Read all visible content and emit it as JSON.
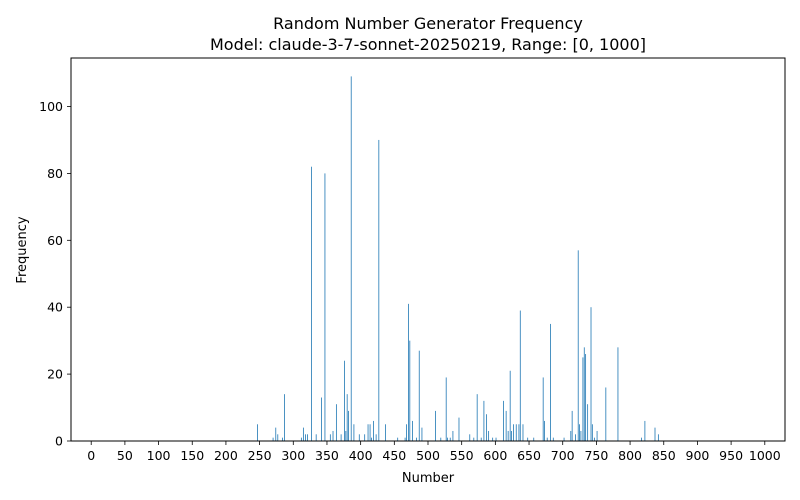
{
  "chart_data": {
    "type": "bar",
    "title_line1": "Random Number Generator Frequency",
    "title_line2": "Model: claude-3-7-sonnet-20250219, Range: [0, 1000]",
    "xlabel": "Number",
    "ylabel": "Frequency",
    "xlim": [
      -30,
      1030
    ],
    "ylim": [
      0,
      114.5
    ],
    "xticks": [
      0,
      50,
      100,
      150,
      200,
      250,
      300,
      350,
      400,
      450,
      500,
      550,
      600,
      650,
      700,
      750,
      800,
      850,
      900,
      950,
      1000
    ],
    "yticks": [
      0,
      20,
      40,
      60,
      80,
      100
    ],
    "grid": false,
    "bar_color": "#1f77b4",
    "series": [
      {
        "points": [
          [
            247,
            5
          ],
          [
            270,
            1
          ],
          [
            274,
            4
          ],
          [
            277,
            2
          ],
          [
            284,
            1
          ],
          [
            287,
            14
          ],
          [
            312,
            1
          ],
          [
            315,
            4
          ],
          [
            318,
            2
          ],
          [
            321,
            2
          ],
          [
            327,
            82
          ],
          [
            334,
            2
          ],
          [
            342,
            13
          ],
          [
            347,
            80
          ],
          [
            355,
            2
          ],
          [
            359,
            3
          ],
          [
            364,
            11
          ],
          [
            371,
            2
          ],
          [
            376,
            24
          ],
          [
            378,
            3
          ],
          [
            380,
            14
          ],
          [
            382,
            9
          ],
          [
            386,
            109
          ],
          [
            390,
            5
          ],
          [
            398,
            2
          ],
          [
            406,
            2
          ],
          [
            411,
            5
          ],
          [
            414,
            5
          ],
          [
            416,
            1
          ],
          [
            419,
            6
          ],
          [
            423,
            2
          ],
          [
            427,
            90
          ],
          [
            437,
            5
          ],
          [
            455,
            1
          ],
          [
            466,
            1
          ],
          [
            468,
            5
          ],
          [
            471,
            41
          ],
          [
            473,
            30
          ],
          [
            477,
            6
          ],
          [
            483,
            1
          ],
          [
            487,
            27
          ],
          [
            491,
            4
          ],
          [
            511,
            9
          ],
          [
            519,
            1
          ],
          [
            527,
            19
          ],
          [
            529,
            1
          ],
          [
            533,
            1
          ],
          [
            537,
            3
          ],
          [
            546,
            7
          ],
          [
            562,
            2
          ],
          [
            568,
            1
          ],
          [
            573,
            14
          ],
          [
            579,
            1
          ],
          [
            583,
            12
          ],
          [
            587,
            8
          ],
          [
            590,
            3
          ],
          [
            596,
            1
          ],
          [
            601,
            1
          ],
          [
            612,
            12
          ],
          [
            616,
            9
          ],
          [
            619,
            3
          ],
          [
            622,
            21
          ],
          [
            624,
            3
          ],
          [
            627,
            5
          ],
          [
            631,
            5
          ],
          [
            635,
            5
          ],
          [
            637,
            39
          ],
          [
            641,
            5
          ],
          [
            648,
            1
          ],
          [
            657,
            1
          ],
          [
            671,
            19
          ],
          [
            673,
            6
          ],
          [
            677,
            1
          ],
          [
            682,
            35
          ],
          [
            686,
            1
          ],
          [
            702,
            1
          ],
          [
            712,
            3
          ],
          [
            714,
            9
          ],
          [
            719,
            2
          ],
          [
            723,
            57
          ],
          [
            725,
            5
          ],
          [
            727,
            3
          ],
          [
            730,
            25
          ],
          [
            732,
            28
          ],
          [
            734,
            26
          ],
          [
            737,
            11
          ],
          [
            742,
            40
          ],
          [
            744,
            5
          ],
          [
            747,
            1
          ],
          [
            751,
            3
          ],
          [
            764,
            16
          ],
          [
            782,
            28
          ],
          [
            817,
            1
          ],
          [
            822,
            6
          ],
          [
            837,
            4
          ],
          [
            842,
            2
          ]
        ]
      }
    ]
  }
}
